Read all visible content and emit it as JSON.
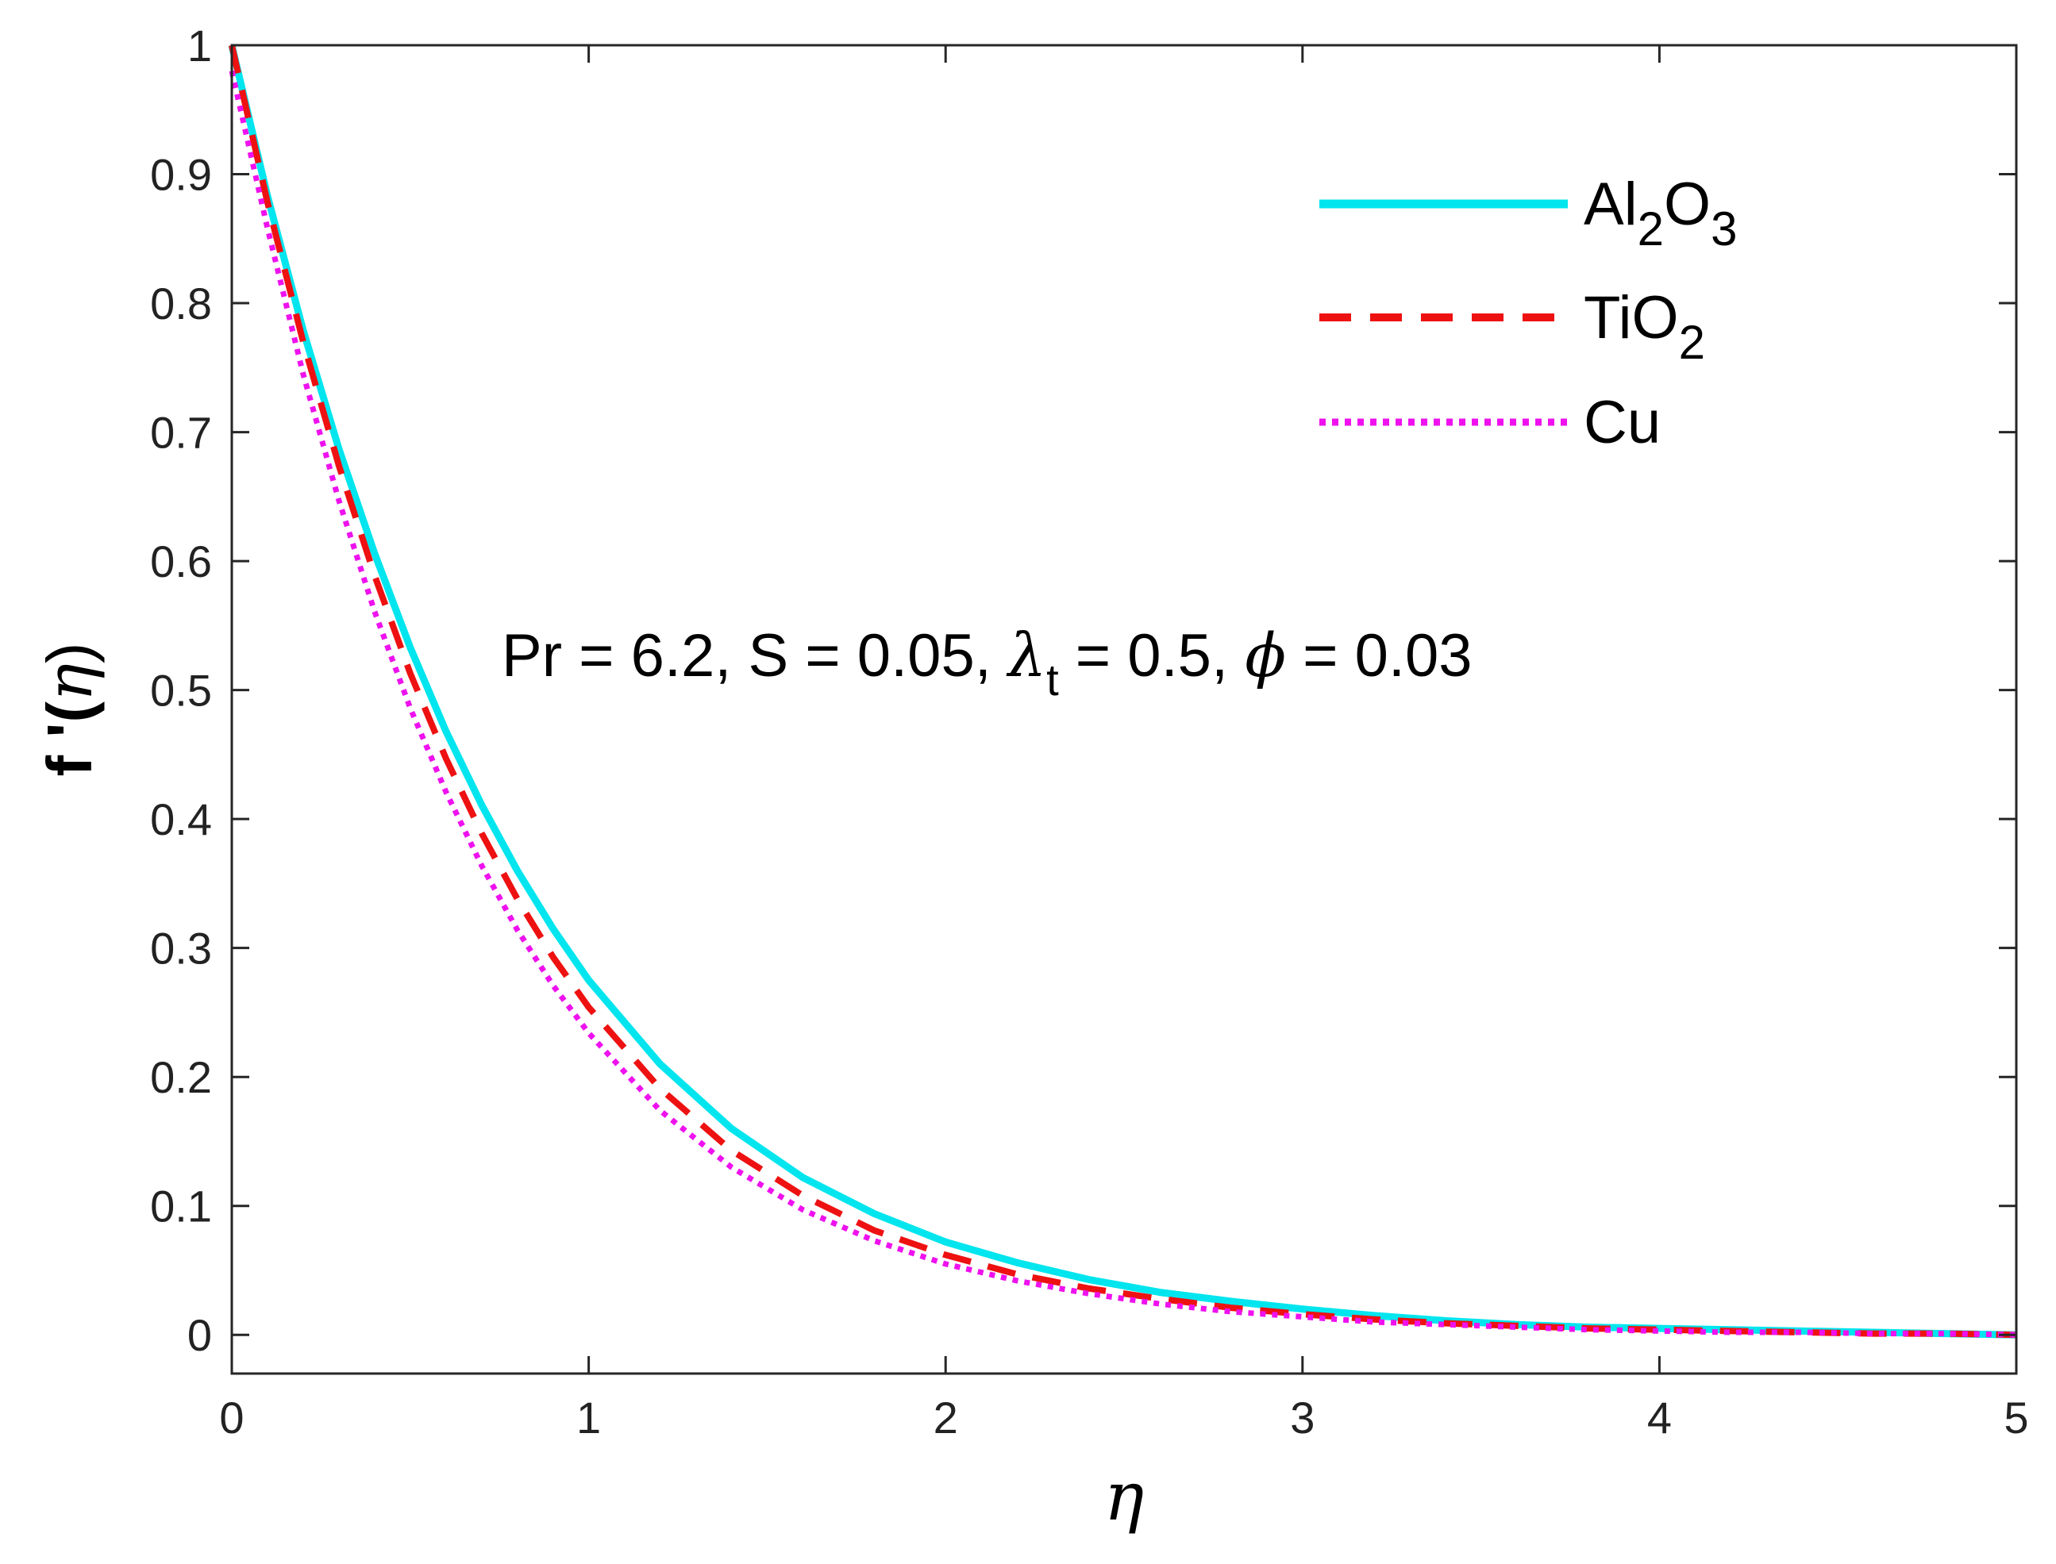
{
  "chart_data": {
    "type": "line",
    "title": "",
    "xlabel": "η",
    "ylabel": "f '(η)",
    "xlim": [
      0,
      5
    ],
    "ylim": [
      -0.03,
      1
    ],
    "xticks": [
      0,
      1,
      2,
      3,
      4,
      5
    ],
    "xtick_labels": [
      "0",
      "1",
      "2",
      "3",
      "4",
      "5"
    ],
    "yticks": [
      0,
      0.1,
      0.2,
      0.3,
      0.4,
      0.5,
      0.6,
      0.7,
      0.8,
      0.9,
      1
    ],
    "ytick_labels": [
      "0",
      "0.1",
      "0.2",
      "0.3",
      "0.4",
      "0.5",
      "0.6",
      "0.7",
      "0.8",
      "0.9",
      "1"
    ],
    "grid": false,
    "legend_position": "top-right",
    "annotation": {
      "prefix": "Pr = 6.2, S = 0.05, ",
      "lambda": "λ",
      "lambda_sub": "t",
      "middle": " = 0.5, ",
      "phi": "ϕ",
      "suffix": " = 0.03"
    },
    "x": [
      0,
      0.1,
      0.2,
      0.3,
      0.4,
      0.5,
      0.6,
      0.7,
      0.8,
      0.9,
      1.0,
      1.2,
      1.4,
      1.6,
      1.8,
      2.0,
      2.2,
      2.4,
      2.6,
      2.8,
      3.0,
      3.2,
      3.4,
      3.6,
      3.8,
      4.0,
      4.2,
      4.4,
      4.6,
      4.8,
      5.0
    ],
    "series": [
      {
        "name": "Al2O3",
        "label_main": "Al",
        "label_sub1": "2",
        "label_mid": "O",
        "label_sub2": "3",
        "color": "#00e5ee",
        "style": "solid",
        "values": [
          1.0,
          0.883,
          0.779,
          0.687,
          0.606,
          0.533,
          0.468,
          0.411,
          0.36,
          0.315,
          0.275,
          0.21,
          0.16,
          0.122,
          0.094,
          0.072,
          0.056,
          0.043,
          0.033,
          0.026,
          0.02,
          0.015,
          0.011,
          0.008,
          0.006,
          0.005,
          0.004,
          0.003,
          0.002,
          0.001,
          0.0
        ]
      },
      {
        "name": "TiO2",
        "label_main": "TiO",
        "label_sub1": "2",
        "label_mid": "",
        "label_sub2": "",
        "color": "#ee1111",
        "style": "dashed",
        "values": [
          1.0,
          0.878,
          0.77,
          0.674,
          0.589,
          0.513,
          0.447,
          0.389,
          0.338,
          0.293,
          0.254,
          0.191,
          0.143,
          0.108,
          0.081,
          0.062,
          0.047,
          0.036,
          0.028,
          0.021,
          0.016,
          0.012,
          0.009,
          0.007,
          0.005,
          0.004,
          0.003,
          0.002,
          0.001,
          0.001,
          0.0
        ]
      },
      {
        "name": "Cu",
        "label_main": "Cu",
        "label_sub1": "",
        "label_mid": "",
        "label_sub2": "",
        "color": "#ee11ee",
        "style": "dotted",
        "values": [
          0.98,
          0.858,
          0.745,
          0.647,
          0.561,
          0.486,
          0.421,
          0.364,
          0.314,
          0.271,
          0.234,
          0.174,
          0.13,
          0.097,
          0.073,
          0.055,
          0.042,
          0.032,
          0.024,
          0.018,
          0.014,
          0.01,
          0.008,
          0.006,
          0.004,
          0.003,
          0.002,
          0.002,
          0.001,
          0.001,
          0.0
        ]
      }
    ]
  }
}
